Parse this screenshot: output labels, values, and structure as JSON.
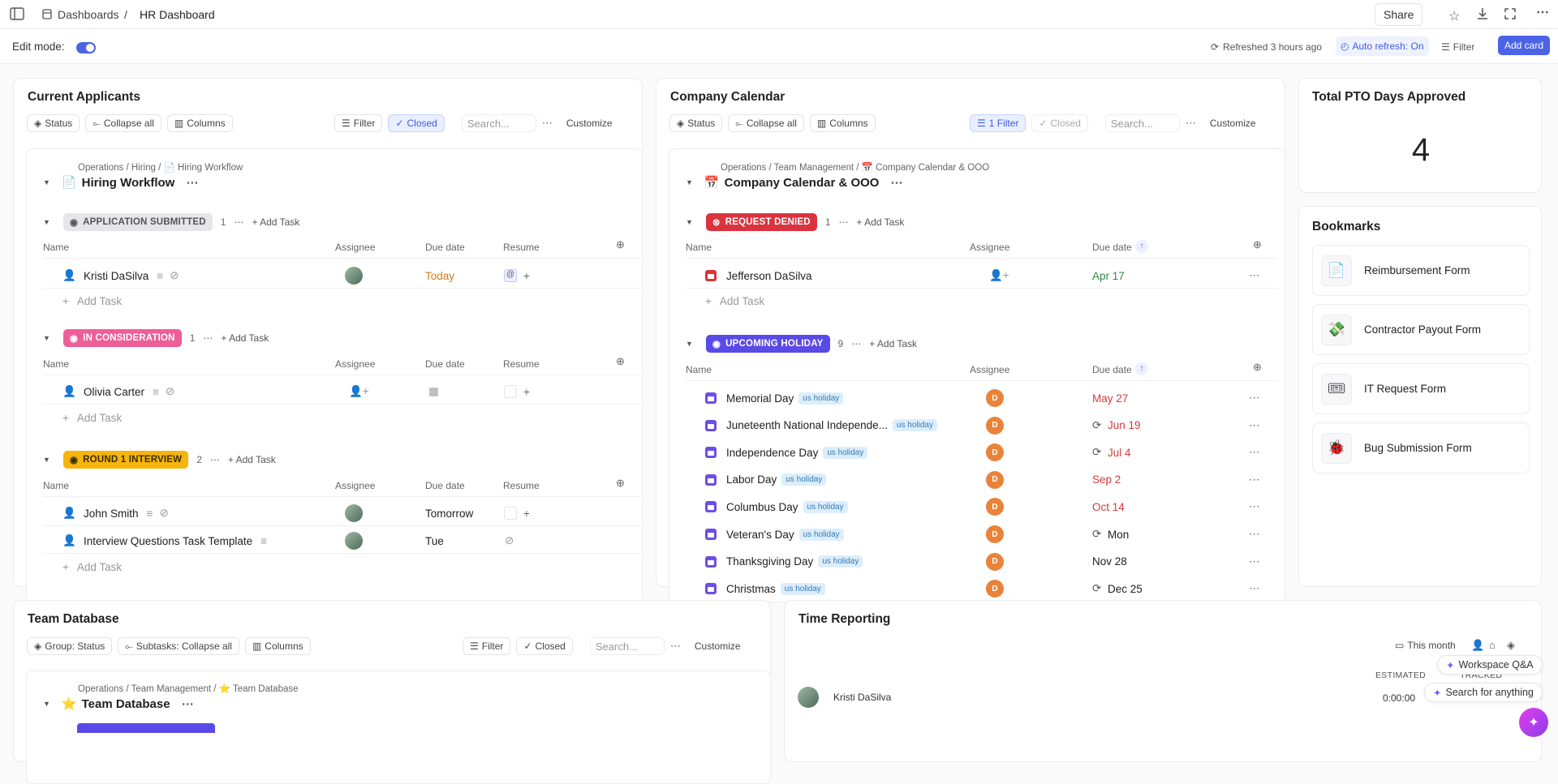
{
  "topbar": {
    "breadcrumb_root": "Dashboards",
    "breadcrumb_sep": "/",
    "page_title": "HR Dashboard",
    "share_label": "Share"
  },
  "subbar": {
    "edit_mode_label": "Edit mode:",
    "refreshed": "Refreshed 3 hours ago",
    "auto_refresh": "Auto refresh: On",
    "filter_label": "Filter",
    "add_card_label": "Add card"
  },
  "applicants": {
    "title": "Current Applicants",
    "status": "Status",
    "collapse": "Collapse all",
    "columns": "Columns",
    "filter": "Filter",
    "closed": "Closed",
    "search_placeholder": "Search...",
    "customize": "Customize",
    "path": "Operations / Hiring / 📄 Hiring Workflow",
    "list_title": "Hiring Workflow",
    "col_name": "Name",
    "col_assignee": "Assignee",
    "col_due": "Due date",
    "col_resume": "Resume",
    "add_task": "Add Task",
    "groups": [
      {
        "status": "APPLICATION SUBMITTED",
        "count": "1",
        "color": "#e6e6ea",
        "text": "#555"
      },
      {
        "status": "IN CONSIDERATION",
        "count": "1",
        "color": "#ee5e99",
        "text": "#ffffff"
      },
      {
        "status": "ROUND 1 INTERVIEW",
        "count": "2",
        "color": "#f5b50c",
        "text": "#3a2b00"
      }
    ],
    "rows": [
      {
        "name": "Kristi DaSilva",
        "due": "Today"
      },
      {
        "name": "Olivia Carter",
        "due": ""
      },
      {
        "name": "John Smith",
        "due": "Tomorrow"
      },
      {
        "name": "Interview Questions Task Template",
        "due": "Tue"
      }
    ]
  },
  "calendar": {
    "title": "Company Calendar",
    "status": "Status",
    "collapse": "Collapse all",
    "columns": "Columns",
    "filter": "1 Filter",
    "closed": "Closed",
    "search_placeholder": "Search...",
    "customize": "Customize",
    "path": "Operations / Team Management / 📅 Company Calendar & OOO",
    "list_title": "Company Calendar & OOO",
    "col_name": "Name",
    "col_assignee": "Assignee",
    "col_due": "Due date",
    "add_task": "Add Task",
    "group_denied": {
      "status": "REQUEST DENIED",
      "count": "1"
    },
    "group_holiday": {
      "status": "UPCOMING HOLIDAY",
      "count": "9"
    },
    "denied_row": {
      "name": "Jefferson DaSilva",
      "due": "Apr 17"
    },
    "tag_label": "us holiday",
    "avatar_letter": "D",
    "holidays": [
      {
        "name": "Memorial Day",
        "due": "May 27",
        "recurring": false,
        "color": "red"
      },
      {
        "name": "Juneteenth National Independe...",
        "due": "Jun 19",
        "recurring": true,
        "color": "red"
      },
      {
        "name": "Independence Day",
        "due": "Jul 4",
        "recurring": true,
        "color": "red"
      },
      {
        "name": "Labor Day",
        "due": "Sep 2",
        "recurring": false,
        "color": "red"
      },
      {
        "name": "Columbus Day",
        "due": "Oct 14",
        "recurring": false,
        "color": "red"
      },
      {
        "name": "Veteran's Day",
        "due": "Mon",
        "recurring": true,
        "color": "dark"
      },
      {
        "name": "Thanksgiving Day",
        "due": "Nov 28",
        "recurring": false,
        "color": "dark"
      },
      {
        "name": "Christmas",
        "due": "Dec 25",
        "recurring": true,
        "color": "dark"
      }
    ]
  },
  "pto": {
    "title": "Total PTO Days Approved",
    "value": "4"
  },
  "bookmarks": {
    "title": "Bookmarks",
    "items": [
      {
        "label": "Reimbursement Form",
        "icon": "📄"
      },
      {
        "label": "Contractor Payout Form",
        "icon": "💸"
      },
      {
        "label": "IT Request Form",
        "icon": "🎟"
      },
      {
        "label": "Bug Submission Form",
        "icon": "🐞"
      }
    ]
  },
  "team_db": {
    "title": "Team Database",
    "group": "Group: Status",
    "subtasks": "Subtasks: Collapse all",
    "columns": "Columns",
    "filter": "Filter",
    "closed": "Closed",
    "search_placeholder": "Search...",
    "customize": "Customize",
    "path": "Operations / Team Management / ⭐ Team Database",
    "list_title": "Team Database"
  },
  "time_reporting": {
    "title": "Time Reporting",
    "period": "This month",
    "estimated_label": "ESTIMATED",
    "tracked_label": "TRACKED",
    "user": "Kristi DaSilva",
    "estimated_value": "0:00:00"
  },
  "floating": {
    "workspace_qa": "Workspace Q&A",
    "search_anything": "Search for anything"
  }
}
